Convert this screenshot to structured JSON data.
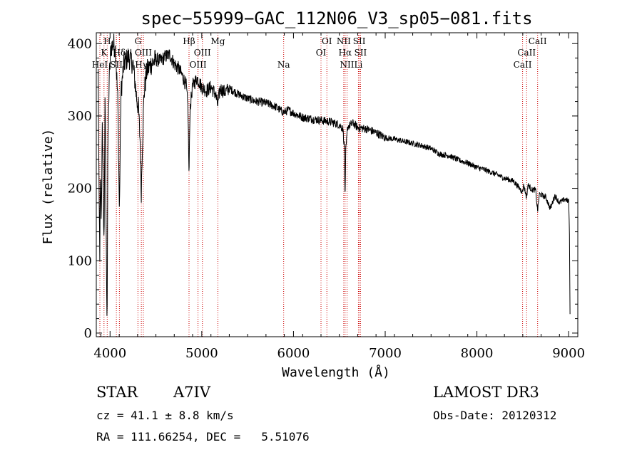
{
  "chart_data": {
    "type": "line",
    "title": "spec−55999−GAC_112N06_V3_sp05−081.fits",
    "xlabel": "Wavelength (Å)",
    "ylabel": "Flux (relative)",
    "xlim": [
      3850,
      9100
    ],
    "ylim": [
      -5,
      415
    ],
    "xticks": [
      4000,
      5000,
      6000,
      7000,
      8000,
      9000
    ],
    "yticks": [
      0,
      100,
      200,
      300,
      400
    ],
    "grid": false,
    "line_color": "#000000",
    "marker_color": "#cc0000",
    "anchors": [
      [
        3870,
        360
      ],
      [
        3880,
        190
      ],
      [
        3888,
        110
      ],
      [
        3895,
        215
      ],
      [
        3905,
        150
      ],
      [
        3915,
        300
      ],
      [
        3925,
        200
      ],
      [
        3935,
        120
      ],
      [
        3945,
        330
      ],
      [
        3955,
        180
      ],
      [
        3962,
        80
      ],
      [
        3968,
        12
      ],
      [
        3975,
        240
      ],
      [
        3990,
        350
      ],
      [
        4010,
        395
      ],
      [
        4040,
        400
      ],
      [
        4060,
        390
      ],
      [
        4085,
        320
      ],
      [
        4102,
        165
      ],
      [
        4118,
        330
      ],
      [
        4150,
        372
      ],
      [
        4200,
        382
      ],
      [
        4250,
        372
      ],
      [
        4290,
        325
      ],
      [
        4310,
        310
      ],
      [
        4330,
        260
      ],
      [
        4340,
        190
      ],
      [
        4352,
        260
      ],
      [
        4370,
        330
      ],
      [
        4400,
        362
      ],
      [
        4450,
        372
      ],
      [
        4500,
        378
      ],
      [
        4550,
        376
      ],
      [
        4600,
        382
      ],
      [
        4650,
        385
      ],
      [
        4700,
        372
      ],
      [
        4750,
        365
      ],
      [
        4800,
        352
      ],
      [
        4830,
        342
      ],
      [
        4850,
        310
      ],
      [
        4861,
        212
      ],
      [
        4872,
        310
      ],
      [
        4900,
        342
      ],
      [
        4950,
        352
      ],
      [
        5000,
        340
      ],
      [
        5050,
        335
      ],
      [
        5100,
        340
      ],
      [
        5150,
        330
      ],
      [
        5175,
        315
      ],
      [
        5200,
        338
      ],
      [
        5250,
        333
      ],
      [
        5300,
        338
      ],
      [
        5400,
        330
      ],
      [
        5500,
        324
      ],
      [
        5600,
        320
      ],
      [
        5700,
        318
      ],
      [
        5800,
        313
      ],
      [
        5890,
        305
      ],
      [
        5950,
        308
      ],
      [
        6000,
        304
      ],
      [
        6100,
        298
      ],
      [
        6200,
        296
      ],
      [
        6300,
        294
      ],
      [
        6400,
        292
      ],
      [
        6500,
        288
      ],
      [
        6540,
        282
      ],
      [
        6555,
        255
      ],
      [
        6563,
        180
      ],
      [
        6570,
        250
      ],
      [
        6590,
        285
      ],
      [
        6650,
        290
      ],
      [
        6700,
        284
      ],
      [
        6800,
        282
      ],
      [
        6900,
        277
      ],
      [
        7000,
        270
      ],
      [
        7100,
        268
      ],
      [
        7200,
        265
      ],
      [
        7300,
        262
      ],
      [
        7400,
        259
      ],
      [
        7500,
        255
      ],
      [
        7600,
        247
      ],
      [
        7700,
        245
      ],
      [
        7800,
        239
      ],
      [
        7900,
        235
      ],
      [
        8000,
        229
      ],
      [
        8100,
        225
      ],
      [
        8200,
        220
      ],
      [
        8300,
        214
      ],
      [
        8400,
        210
      ],
      [
        8498,
        195
      ],
      [
        8510,
        205
      ],
      [
        8542,
        187
      ],
      [
        8555,
        205
      ],
      [
        8600,
        198
      ],
      [
        8640,
        198
      ],
      [
        8662,
        168
      ],
      [
        8680,
        192
      ],
      [
        8750,
        188
      ],
      [
        8800,
        172
      ],
      [
        8850,
        190
      ],
      [
        8900,
        180
      ],
      [
        8960,
        185
      ],
      [
        9000,
        182
      ],
      [
        9008,
        150
      ],
      [
        9015,
        30
      ]
    ],
    "lines": [
      {
        "label": "K",
        "x": 3934,
        "row": 2
      },
      {
        "label": "H",
        "x": 3969,
        "row": 1
      },
      {
        "label": "Hδ",
        "x": 4102,
        "row": 2
      },
      {
        "label": "HeI",
        "x": 3889,
        "row": 3
      },
      {
        "label": "SII",
        "x": 4069,
        "row": 3
      },
      {
        "label": "G",
        "x": 4304,
        "row": 1
      },
      {
        "label": "OIII",
        "x": 4363,
        "row": 2
      },
      {
        "label": "Hγ",
        "x": 4341,
        "row": 3
      },
      {
        "label": "Hβ",
        "x": 4861,
        "row": 1
      },
      {
        "label": "OIII",
        "x": 5007,
        "row": 2
      },
      {
        "label": "OIII",
        "x": 4959,
        "row": 3
      },
      {
        "label": "Mg",
        "x": 5176,
        "row": 1
      },
      {
        "label": "Na",
        "x": 5893,
        "row": 3
      },
      {
        "label": "OI",
        "x": 6364,
        "row": 1
      },
      {
        "label": "OI",
        "x": 6300,
        "row": 2
      },
      {
        "label": "NII",
        "x": 6548,
        "row": 1
      },
      {
        "label": "NII",
        "x": 6584,
        "row": 3
      },
      {
        "label": "Hα",
        "x": 6563,
        "row": 2
      },
      {
        "label": "SII",
        "x": 6717,
        "row": 1
      },
      {
        "label": "SII",
        "x": 6731,
        "row": 2
      },
      {
        "label": "Li",
        "x": 6708,
        "row": 3
      },
      {
        "label": "CaII",
        "x": 8662,
        "row": 1
      },
      {
        "label": "CaII",
        "x": 8542,
        "row": 2
      },
      {
        "label": "CaII",
        "x": 8498,
        "row": 3
      }
    ]
  },
  "info": {
    "object_type": "STAR",
    "subclass": "A7IV",
    "survey": "LAMOST DR3",
    "cz_line": "cz = 41.1 ± 8.8 km/s",
    "obs_date_line": "Obs-Date: 20120312",
    "coords_line": "RA = 111.66254, DEC =   5.51076"
  }
}
